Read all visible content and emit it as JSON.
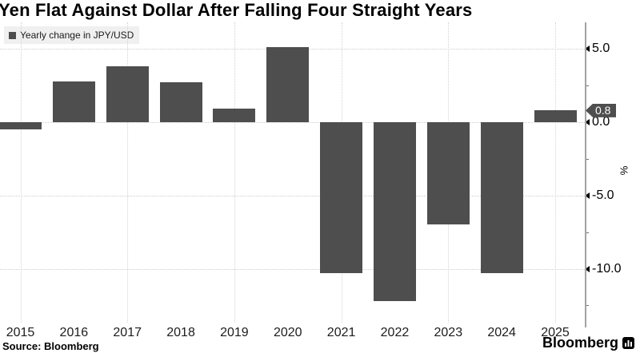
{
  "title": "Yen Flat Against Dollar After Falling Four Straight Years",
  "legend": {
    "label": "Yearly change in JPY/USD",
    "swatch_color": "#4e4e4e"
  },
  "badge": {
    "value": "0.8"
  },
  "axis": {
    "unit_label": "%"
  },
  "footer": {
    "source": "Source: Bloomberg",
    "brand": "Bloomberg"
  },
  "chart_data": {
    "type": "bar",
    "title": "Yen Flat Against Dollar After Falling Four Straight Years",
    "legend_label": "Yearly change in JPY/USD",
    "categories": [
      "2015",
      "2016",
      "2017",
      "2018",
      "2019",
      "2020",
      "2021",
      "2022",
      "2023",
      "2024",
      "2025"
    ],
    "values": [
      -0.5,
      2.8,
      3.8,
      2.7,
      0.9,
      5.1,
      -10.3,
      -12.2,
      -7.0,
      -10.3,
      0.8
    ],
    "unit": "%",
    "ylabel": "%",
    "ylim": [
      -13.7,
      6.7
    ],
    "yticks_major": [
      5.0,
      0.0,
      -5.0,
      -10.0
    ],
    "yticks_minor": [
      2.5,
      -2.5,
      -7.5,
      -12.5
    ],
    "grid_vertical_at": [
      "2015",
      "2017",
      "2019",
      "2021",
      "2023",
      "2025"
    ],
    "bar_color": "#4e4e4e",
    "current_value": 0.8,
    "current_value_label": "0.8",
    "legend_position": "top-left",
    "axis_side": "right",
    "grid": true
  }
}
